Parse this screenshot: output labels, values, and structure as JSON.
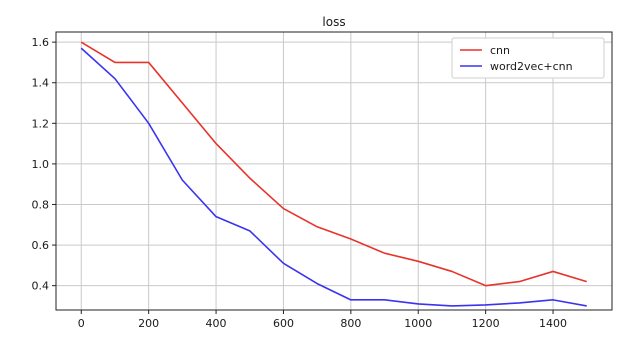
{
  "chart_data": {
    "type": "line",
    "title": "loss",
    "xlabel": "",
    "ylabel": "",
    "x": [
      0,
      100,
      200,
      300,
      400,
      500,
      600,
      700,
      800,
      900,
      1000,
      1100,
      1200,
      1300,
      1400,
      1500
    ],
    "series": [
      {
        "name": "cnn",
        "color": "#e8332a",
        "values": [
          1.6,
          1.5,
          1.5,
          1.3,
          1.1,
          0.93,
          0.78,
          0.69,
          0.63,
          0.56,
          0.52,
          0.47,
          0.4,
          0.42,
          0.47,
          0.42
        ]
      },
      {
        "name": "word2vec+cnn",
        "color": "#3b33f0",
        "values": [
          1.57,
          1.42,
          1.2,
          0.92,
          0.74,
          0.67,
          0.51,
          0.41,
          0.33,
          0.33,
          0.31,
          0.3,
          0.305,
          0.315,
          0.33,
          0.3
        ]
      }
    ],
    "xlim": [
      -75,
      1575
    ],
    "ylim": [
      0.28,
      1.65
    ],
    "xticks": [
      0,
      200,
      400,
      600,
      800,
      1000,
      1200,
      1400
    ],
    "xtick_labels": [
      "0",
      "200",
      "400",
      "600",
      "800",
      "1000",
      "1200",
      "1400"
    ],
    "yticks": [
      0.4,
      0.6,
      0.8,
      1.0,
      1.2,
      1.4,
      1.6
    ],
    "ytick_labels": [
      "0.4",
      "0.6",
      "0.8",
      "1.0",
      "1.2",
      "1.4",
      "1.6"
    ],
    "grid": true,
    "legend_position": "top-right"
  }
}
